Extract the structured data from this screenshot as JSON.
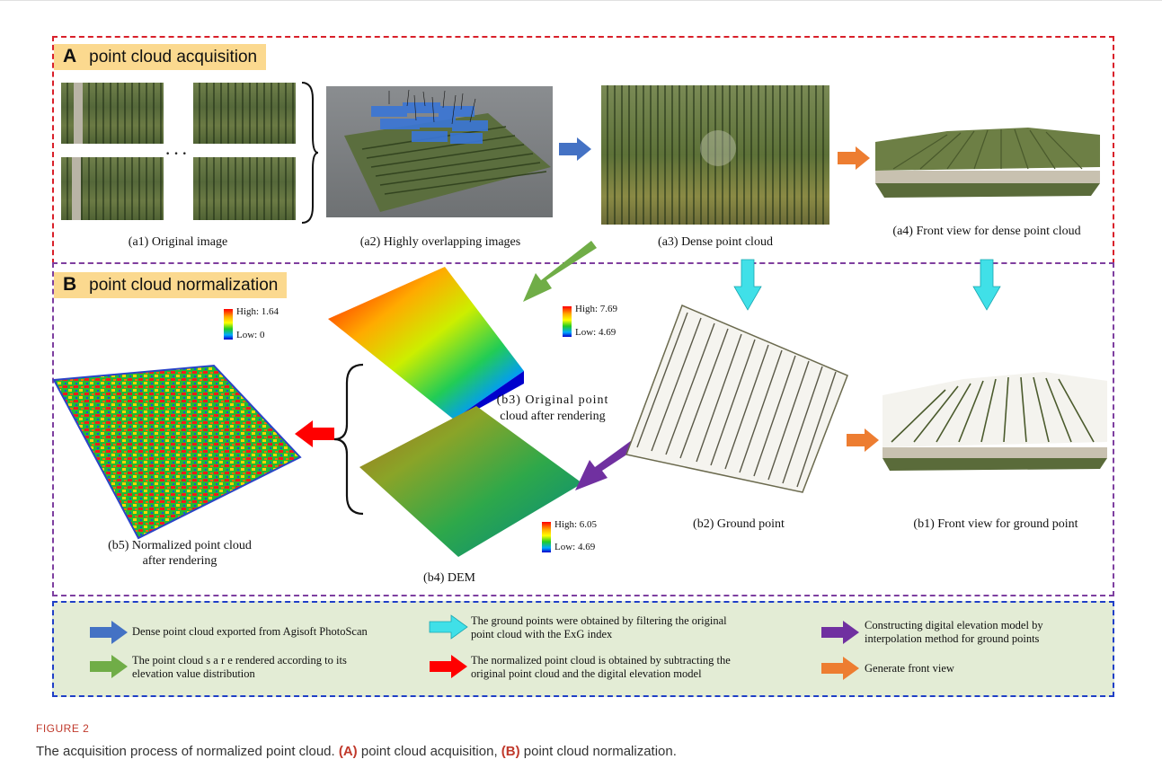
{
  "sectionA": {
    "letter": "A",
    "title": "point cloud acquisition"
  },
  "sectionB": {
    "letter": "B",
    "title": "point cloud normalization"
  },
  "captions": {
    "a1": "(a1) Original image",
    "a2": "(a2) Highly overlapping images",
    "a3": "(a3) Dense point cloud",
    "a4": "(a4)  Front view for dense point cloud",
    "b1": "(b1) Front view for ground point",
    "b2": "(b2) Ground point",
    "b3_line1": "(b3) Original  point",
    "b3_line2": "cloud after rendering",
    "b4": "(b4) DEM",
    "b5_line1": "(b5) Normalized point cloud",
    "b5_line2": "after rendering"
  },
  "ellipsis": "· · ·",
  "colorbars": {
    "b3": {
      "high": "High: 7.69",
      "low": "Low: 4.69"
    },
    "b5": {
      "high": "High: 1.64",
      "low": "Low:  0"
    },
    "b4": {
      "high": "High: 6.05",
      "low": "Low: 4.69"
    }
  },
  "legend": [
    {
      "color": "#4472c4",
      "text": "Dense point cloud exported from Agisoft PhotoScan"
    },
    {
      "color": "#40e0e8",
      "text": "The ground points were obtained by filtering the original point cloud with the ExG index"
    },
    {
      "color": "#7030a0",
      "text": "Constructing digital elevation model by interpolation method for ground points"
    },
    {
      "color": "#70ad47",
      "text": "The point cloud s  a r e  rendered according to its elevation value distribution"
    },
    {
      "color": "#ff0000",
      "text": "The normalized point cloud is obtained by subtracting the original point cloud and the digital elevation model"
    },
    {
      "color": "#ed7d31",
      "text": "Generate front view"
    }
  ],
  "figure": {
    "label": "FIGURE 2",
    "caption_prefix": "The acquisition process of normalized point cloud. ",
    "caption_a": "(A)",
    "caption_mid": " point cloud acquisition, ",
    "caption_b": "(B)",
    "caption_end": " point cloud normalization."
  }
}
